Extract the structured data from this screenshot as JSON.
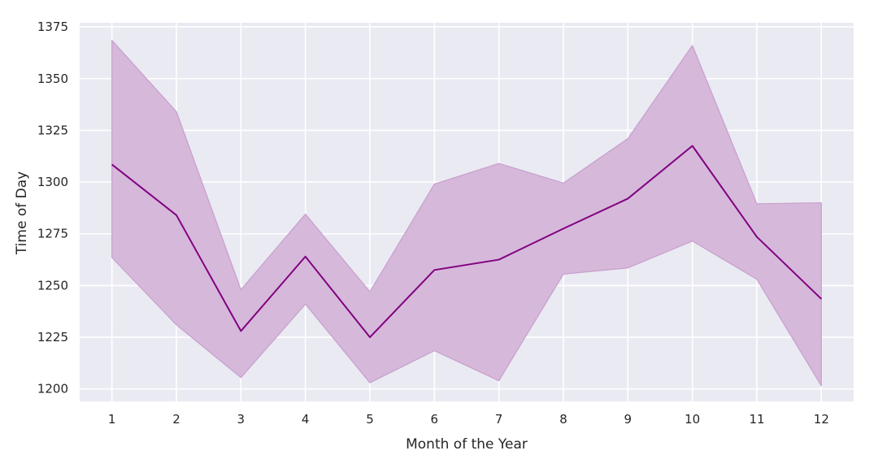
{
  "chart_data": {
    "type": "line",
    "xlabel": "Month of the Year",
    "ylabel": "Time of Day",
    "x": [
      1,
      2,
      3,
      4,
      5,
      6,
      7,
      8,
      9,
      10,
      11,
      12
    ],
    "xticks": [
      "1",
      "2",
      "3",
      "4",
      "5",
      "6",
      "7",
      "8",
      "9",
      "10",
      "11",
      "12"
    ],
    "yticks": [
      1200,
      1225,
      1250,
      1275,
      1300,
      1325,
      1350,
      1375
    ],
    "xlim": [
      0.5,
      12.5
    ],
    "ylim": [
      1194,
      1377
    ],
    "grid": true,
    "series": [
      {
        "mean": [
          1308.5,
          1284,
          1228,
          1264,
          1225,
          1257.5,
          1262.5,
          1277.5,
          1292,
          1317.5,
          1273.5,
          1243.5
        ],
        "upper": [
          1368.5,
          1334,
          1248,
          1284.5,
          1247,
          1299,
          1309,
          1299.5,
          1321,
          1366,
          1289.5,
          1290
        ],
        "lower": [
          1263.5,
          1231,
          1205.5,
          1241,
          1203,
          1218.5,
          1204,
          1255.5,
          1258.5,
          1271.5,
          1253,
          1201.5
        ]
      }
    ],
    "colors": {
      "line": "#800080",
      "band": "#d6b8da",
      "band_edge": "#c79fcd",
      "plot_bg": "#eaeaf2",
      "grid": "#ffffff"
    }
  }
}
